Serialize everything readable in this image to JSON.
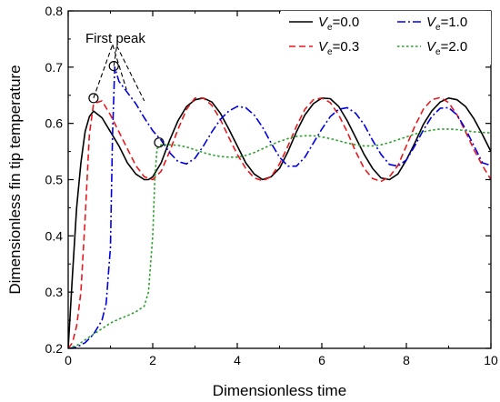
{
  "chart_data": {
    "type": "line",
    "title": "",
    "xlabel": "Dimensionless time",
    "ylabel": "Dimensionless fin tip temperature",
    "xlim": [
      0,
      10
    ],
    "ylim": [
      0.2,
      0.8
    ],
    "xticks": [
      0,
      2,
      4,
      6,
      8,
      10
    ],
    "yticks": [
      0.2,
      0.3,
      0.4,
      0.5,
      0.6,
      0.7,
      0.8
    ],
    "xtick_labels": [
      "0",
      "2",
      "4",
      "6",
      "8",
      "10"
    ],
    "ytick_labels": [
      "0.2",
      "0.3",
      "0.4",
      "0.5",
      "0.6",
      "0.7",
      "0.8"
    ],
    "grid": false,
    "legend_position": "top-right",
    "legend_symbol": "V",
    "legend_subscript": "e",
    "series": [
      {
        "name": "=0.0",
        "color": "#000000",
        "dash": "solid",
        "x": [
          0,
          0.1,
          0.2,
          0.3,
          0.4,
          0.5,
          0.6,
          0.8,
          1.0,
          1.2,
          1.4,
          1.6,
          1.8,
          1.9,
          2.0,
          2.2,
          2.4,
          2.6,
          2.8,
          3.0,
          3.2,
          3.4,
          3.6,
          3.8,
          4.0,
          4.2,
          4.4,
          4.6,
          4.8,
          5.0,
          5.2,
          5.4,
          5.6,
          5.8,
          6.0,
          6.2,
          6.4,
          6.6,
          6.8,
          7.0,
          7.2,
          7.4,
          7.6,
          7.8,
          8.0,
          8.2,
          8.4,
          8.6,
          8.8,
          9.0,
          9.2,
          9.4,
          9.6,
          9.8,
          10.0
        ],
        "values": [
          0.2,
          0.33,
          0.45,
          0.53,
          0.585,
          0.612,
          0.622,
          0.61,
          0.585,
          0.56,
          0.53,
          0.51,
          0.5,
          0.5,
          0.505,
          0.53,
          0.57,
          0.605,
          0.63,
          0.642,
          0.645,
          0.638,
          0.618,
          0.59,
          0.56,
          0.53,
          0.51,
          0.5,
          0.505,
          0.52,
          0.55,
          0.585,
          0.615,
          0.635,
          0.645,
          0.644,
          0.63,
          0.605,
          0.575,
          0.545,
          0.52,
          0.503,
          0.5,
          0.51,
          0.535,
          0.565,
          0.598,
          0.622,
          0.638,
          0.645,
          0.642,
          0.63,
          0.608,
          0.58,
          0.55
        ]
      },
      {
        "name": "=0.3",
        "color": "#e8191e",
        "dash": "dashed",
        "x": [
          0,
          0.1,
          0.2,
          0.3,
          0.4,
          0.5,
          0.6,
          0.8,
          1.0,
          1.2,
          1.4,
          1.6,
          1.8,
          2.0,
          2.2,
          2.4,
          2.6,
          2.8,
          3.0,
          3.2,
          3.4,
          3.6,
          3.8,
          4.0,
          4.2,
          4.4,
          4.6,
          4.8,
          5.0,
          5.2,
          5.4,
          5.6,
          5.8,
          6.0,
          6.2,
          6.4,
          6.6,
          6.8,
          7.0,
          7.2,
          7.4,
          7.6,
          7.8,
          8.0,
          8.2,
          8.4,
          8.6,
          8.8,
          9.0,
          9.2,
          9.4,
          9.6,
          9.8,
          10.0
        ],
        "values": [
          0.2,
          0.21,
          0.24,
          0.3,
          0.43,
          0.58,
          0.635,
          0.64,
          0.615,
          0.585,
          0.555,
          0.525,
          0.505,
          0.5,
          0.515,
          0.55,
          0.59,
          0.625,
          0.645,
          0.645,
          0.632,
          0.607,
          0.575,
          0.545,
          0.52,
          0.503,
          0.498,
          0.505,
          0.528,
          0.56,
          0.595,
          0.625,
          0.642,
          0.645,
          0.637,
          0.615,
          0.585,
          0.55,
          0.52,
          0.502,
          0.497,
          0.505,
          0.525,
          0.56,
          0.595,
          0.625,
          0.642,
          0.646,
          0.637,
          0.615,
          0.585,
          0.553,
          0.525,
          0.5
        ]
      },
      {
        "name": "=1.0",
        "color": "#0000e0",
        "dash": "dashdot",
        "x": [
          0,
          0.2,
          0.4,
          0.6,
          0.8,
          0.9,
          1.0,
          1.05,
          1.1,
          1.2,
          1.4,
          1.6,
          1.8,
          2.0,
          2.2,
          2.4,
          2.6,
          2.8,
          3.0,
          3.2,
          3.4,
          3.6,
          3.8,
          4.0,
          4.2,
          4.4,
          4.6,
          4.8,
          5.0,
          5.2,
          5.4,
          5.6,
          5.8,
          6.0,
          6.2,
          6.4,
          6.6,
          6.8,
          7.0,
          7.2,
          7.4,
          7.6,
          7.8,
          8.0,
          8.2,
          8.4,
          8.6,
          8.8,
          9.0,
          9.2,
          9.4,
          9.6,
          9.8,
          10.0
        ],
        "values": [
          0.2,
          0.202,
          0.21,
          0.225,
          0.25,
          0.28,
          0.38,
          0.58,
          0.7,
          0.675,
          0.655,
          0.635,
          0.61,
          0.587,
          0.57,
          0.548,
          0.532,
          0.528,
          0.538,
          0.56,
          0.585,
          0.607,
          0.622,
          0.63,
          0.628,
          0.615,
          0.593,
          0.565,
          0.54,
          0.524,
          0.524,
          0.54,
          0.565,
          0.59,
          0.612,
          0.625,
          0.628,
          0.618,
          0.598,
          0.57,
          0.545,
          0.527,
          0.524,
          0.535,
          0.56,
          0.588,
          0.612,
          0.627,
          0.628,
          0.615,
          0.59,
          0.56,
          0.53,
          0.525
        ]
      },
      {
        "name": "=2.0",
        "color": "#2aa02a",
        "dash": "dotted",
        "x": [
          0,
          0.2,
          0.4,
          0.6,
          0.8,
          1.0,
          1.2,
          1.4,
          1.6,
          1.8,
          1.9,
          2.0,
          2.05,
          2.1,
          2.2,
          2.4,
          2.6,
          2.8,
          3.0,
          3.2,
          3.4,
          3.6,
          3.8,
          4.0,
          4.2,
          4.4,
          4.6,
          4.8,
          5.0,
          5.2,
          5.4,
          5.6,
          5.8,
          6.0,
          6.2,
          6.4,
          6.6,
          6.8,
          7.0,
          7.2,
          7.4,
          7.6,
          7.8,
          8.0,
          8.2,
          8.4,
          8.6,
          8.8,
          9.0,
          9.2,
          9.4,
          9.6,
          9.8,
          10.0
        ],
        "values": [
          0.2,
          0.205,
          0.215,
          0.225,
          0.235,
          0.245,
          0.252,
          0.258,
          0.265,
          0.275,
          0.3,
          0.4,
          0.5,
          0.555,
          0.562,
          0.562,
          0.561,
          0.558,
          0.553,
          0.548,
          0.544,
          0.541,
          0.54,
          0.54,
          0.543,
          0.548,
          0.555,
          0.562,
          0.568,
          0.573,
          0.577,
          0.578,
          0.578,
          0.576,
          0.573,
          0.569,
          0.565,
          0.562,
          0.56,
          0.56,
          0.562,
          0.566,
          0.571,
          0.576,
          0.581,
          0.585,
          0.588,
          0.59,
          0.59,
          0.589,
          0.587,
          0.585,
          0.584,
          0.583
        ]
      }
    ],
    "annotations": {
      "text": "First peak",
      "peak_markers": [
        {
          "x": 0.6,
          "y": 0.645
        },
        {
          "x": 1.08,
          "y": 0.702
        },
        {
          "x": 2.15,
          "y": 0.566
        }
      ],
      "dashed_connectors": [
        {
          "x1": 0.6,
          "y1": 0.645,
          "x2": 1.05,
          "y2": 0.74
        },
        {
          "x1": 1.05,
          "y1": 0.74,
          "x2": 1.38,
          "y2": 0.66
        },
        {
          "x1": 1.08,
          "y1": 0.702,
          "x2": 1.15,
          "y2": 0.738
        },
        {
          "x1": 1.15,
          "y1": 0.738,
          "x2": 1.8,
          "y2": 0.64
        }
      ]
    }
  }
}
